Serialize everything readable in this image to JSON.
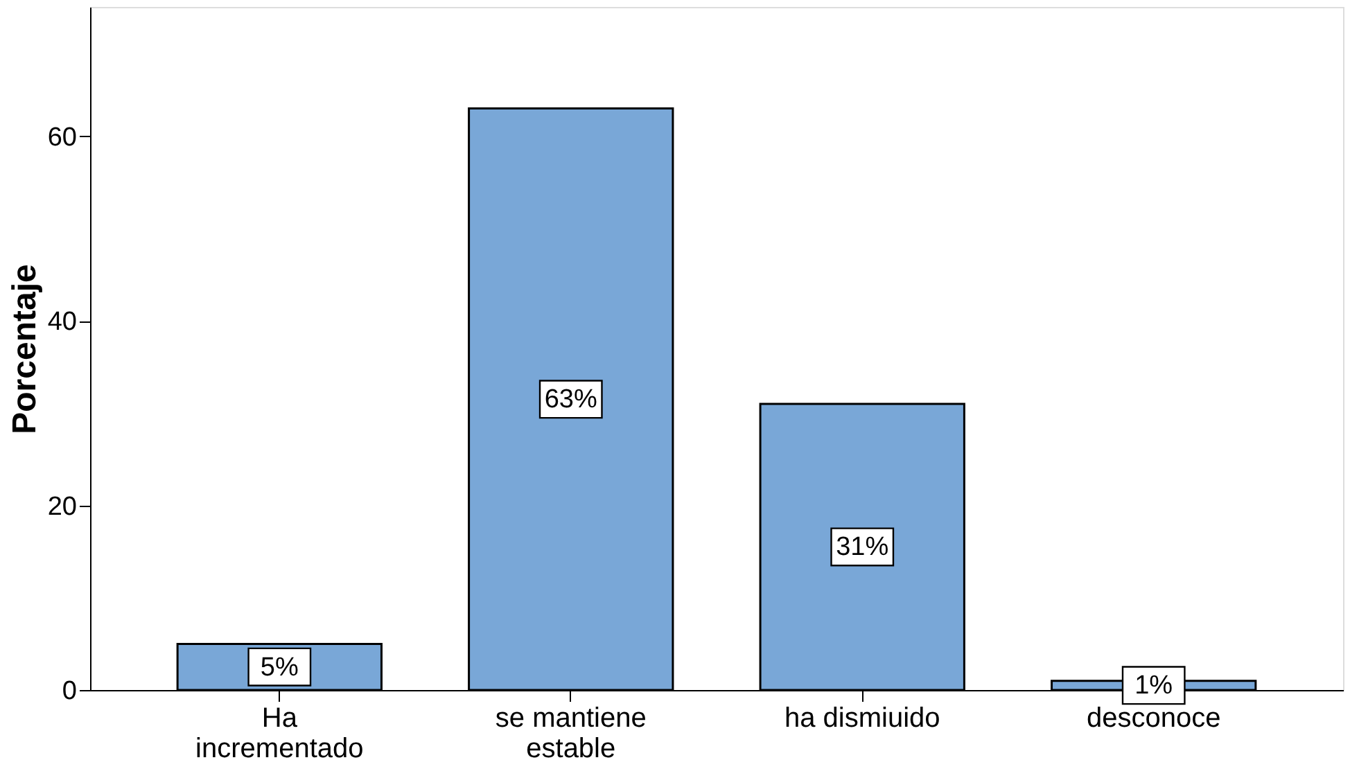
{
  "chart_data": {
    "type": "bar",
    "ylabel": "Porcentaje",
    "categories": [
      "Ha incrementado",
      "se mantiene estable",
      "ha dismiuido",
      "desconoce"
    ],
    "values": [
      5,
      63,
      31,
      1
    ],
    "value_labels": [
      "5%",
      "63%",
      "31%",
      "1%"
    ],
    "color": "#79a7d7",
    "ylim": [
      0,
      74
    ],
    "yticks": [
      0,
      20,
      40,
      60
    ],
    "grid": false
  }
}
